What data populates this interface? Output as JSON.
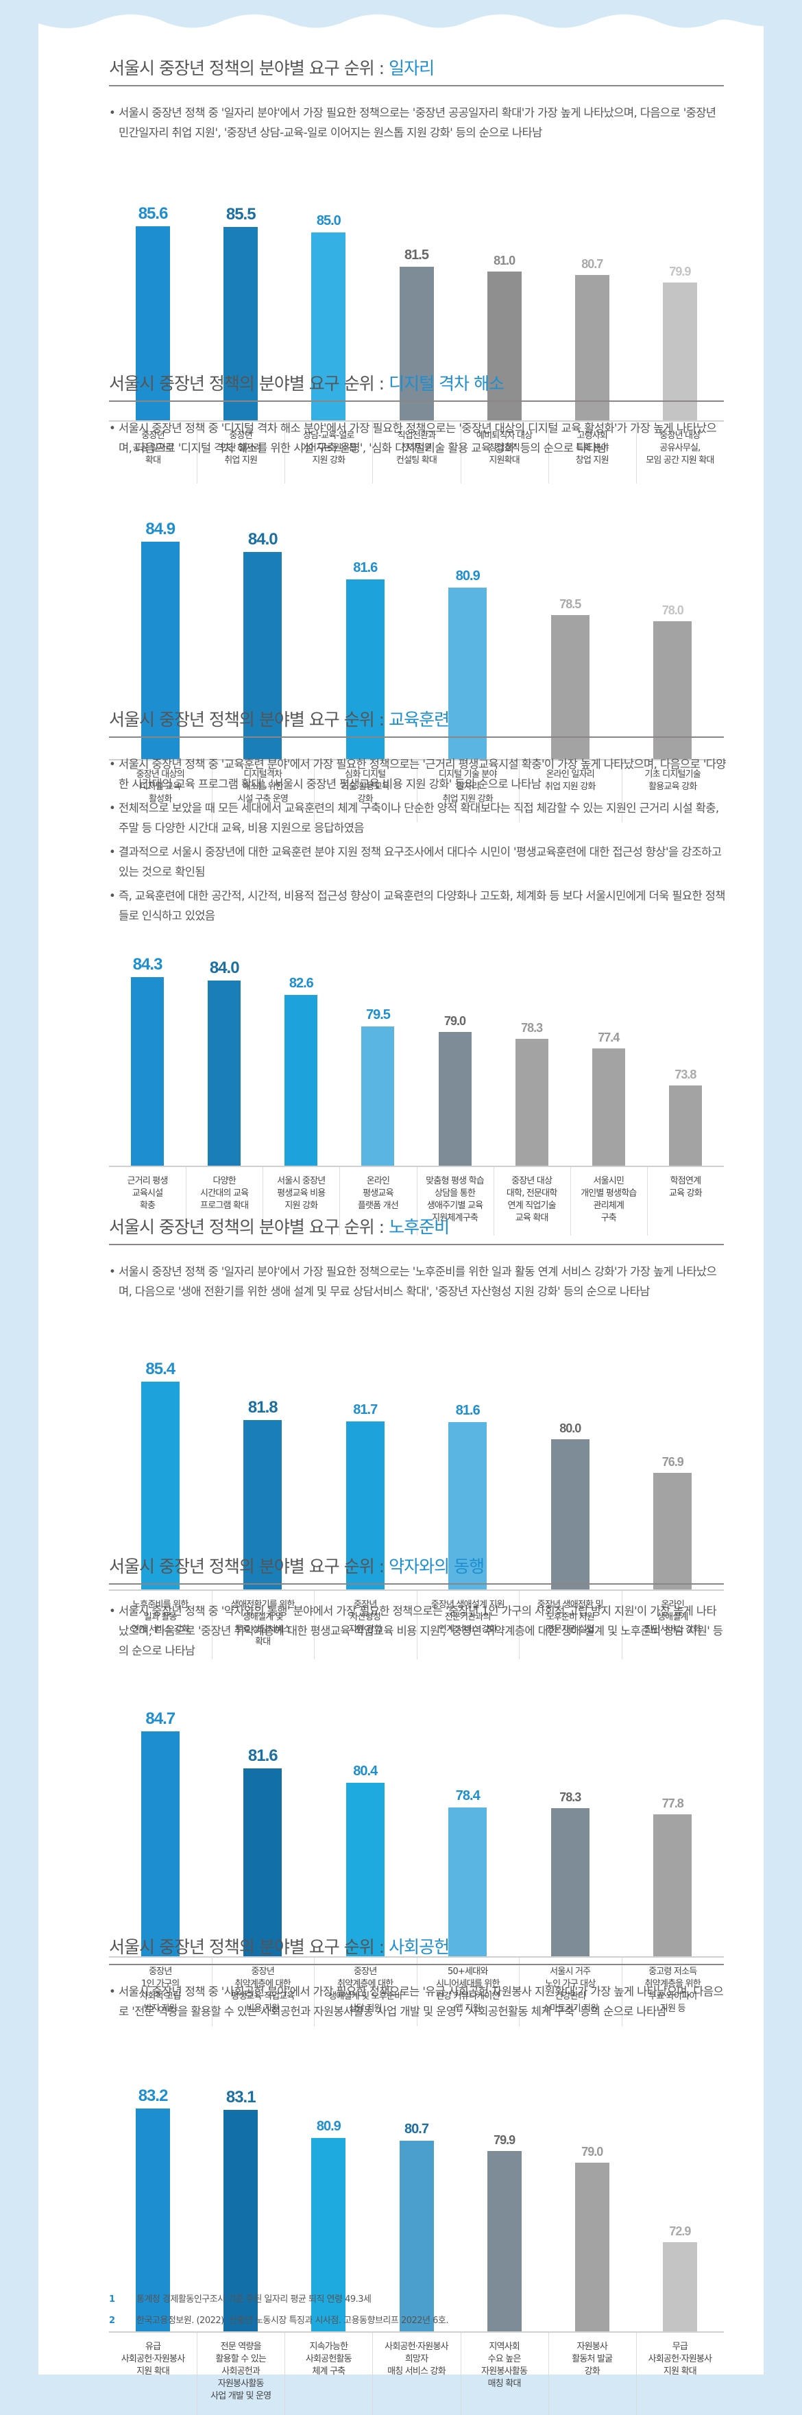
{
  "page": {
    "title_prefix": "서울시 중장년 정책의 분야별 요구 순위 : ",
    "colors": {
      "background": "#d4e8f5",
      "panel": "#ffffff",
      "accent": "#1d8fd1",
      "rule": "#8a8686"
    }
  },
  "sections": [
    {
      "accent_title": "일자리",
      "bullets": [
        "서울시 중장년 정책 중 '일자리 분야'에서 가장 필요한 정책으로는 '중장년 공공일자리 확대'가 가장 높게 나타났으며, 다음으로 '중장년 민간일자리 취업 지원', '중장년 상담-교육-일로 이어지는 원스톱 지원 강화' 등의 순으로 나타남"
      ]
    },
    {
      "accent_title": "디지털 격차 해소",
      "bullets": [
        "서울시 중장년 정책 중 '디지털 격차 해소 분야'에서 가장 필요한 정책으로는 '중장년 대상의 디지털 교육 활성화'가 가장 높게 나타났으며, 다음으로 '디지털 격차 해소를 위한 시설 구축 운영', '심화 디지털기술 활용 교육 강화' 등의 순으로 나타남"
      ]
    },
    {
      "accent_title": "교육훈련",
      "bullets": [
        "서울시 중장년 정책 중 '교육훈련 분야'에서 가장 필요한 정책으로는 '근거리 평생교육시설 확충'이 가장 높게 나타났으며, 다음으로 '다양한 시간대의 교육 프로그램 확대', '서울시 중장년 평생교육 비용 지원 강화' 등의 순으로 나타남",
        "전체적으로 보았을 때 모든 세대에서 교육훈련의 체계 구축이나 단순한 양적 확대보다는 직접 체감할 수 있는 지원인 근거리 시설 확충, 주말 등 다양한 시간대 교육, 비용 지원으로 응답하였음",
        "결과적으로 서울시 중장년에 대한 교육훈련 분야 지원 정책 요구조사에서 대다수 시민이 '평생교육훈련에 대한 접근성 향상'을 강조하고 있는 것으로 확인됨",
        "즉, 교육훈련에 대한 공간적, 시간적, 비용적 접근성 향상이 교육훈련의 다양화나 고도화, 체계화 등 보다 서울시민에게 더욱 필요한 정책들로 인식하고 있었음"
      ]
    },
    {
      "accent_title": "노후준비",
      "bullets": [
        "서울시 중장년 정책 중 '일자리 분야'에서 가장 필요한 정책으로는 '노후준비를 위한 일과 활동 연계 서비스 강화'가 가장 높게 나타났으며, 다음으로 '생애 전환기를 위한 생애 설계 및 무료 상담서비스 확대', '중장년 자산형성 지원 강화' 등의 순으로 나타남"
      ]
    },
    {
      "accent_title": "약자와의 동행",
      "bullets": [
        "서울시 중장년 정책 중 '약자와의 동행' 분야에서 가장 필요한 정책으로는 '중장년 1인 가구의 사회적 고립 방지 지원'이 가장 높게 나타났으며, 다음으로 '중장년 취약계층에 대한 평생교육·직업교육 비용 지원', '중장년 취약계층에 대한 생애 설계 및 노후준비 상담 지원' 등의 순으로 나타남"
      ]
    },
    {
      "accent_title": "사회공헌",
      "bullets": [
        "서울시 중장년 정책 중 '사회공헌 분야'에서 가장 필요한 정책으로는 '유급 사회공헌·자원봉사 지원확대'가 가장 높게 나타났으며, 다음으로 '전문 역량을 활용할 수 있는 사회공헌과 자원봉사활동 사업 개발 및 운영', '사회공헌활동 체계 구축' 등의 순으로 나타남"
      ]
    }
  ],
  "chart_data": [
    {
      "type": "bar",
      "title": "서울시 중장년 정책의 분야별 요구 순위 : 일자리",
      "categories": [
        "중장년\n공공 일자리\n확대",
        "중장년\n민간 일자리\n취업 지원",
        "상담-교육-일로\n이어지는 원스톱\n지원 강화",
        "직업전환과\n전직지원\n컨설팅 확대",
        "예비퇴직자 대상\n창업창직\n지원확대",
        "고령사회\n특화 분야\n창업 지원",
        "중장년 대상\n공유사무실,\n모임 공간 지원 확대"
      ],
      "values": [
        85.6,
        85.5,
        85.0,
        81.5,
        81.0,
        80.7,
        79.9
      ],
      "labels": [
        "85.6",
        "85.5",
        "85.0",
        "81.5",
        "81.0",
        "80.7",
        "79.9"
      ],
      "colors": [
        "#1d8fd1",
        "#1a7fb8",
        "#35b0e4",
        "#7d8c97",
        "#8f8f8f",
        "#a3a3a3",
        "#c4c4c4"
      ],
      "label_colors": [
        "#1d8fd1",
        "#1a6fa3",
        "#1d8fd1",
        "#666666",
        "#888888",
        "#aaaaaa",
        "#c4c4c4"
      ],
      "xlabel": "",
      "ylabel": "",
      "grid": false
    },
    {
      "type": "bar",
      "title": "서울시 중장년 정책의 분야별 요구 순위 : 디지털 격차 해소",
      "categories": [
        "중장년 대상의\n디지털 교육\n활성화",
        "디지털격차\n해소를 위한\n시설 구축 운영",
        "심화 디지털\n기술 활용교육\n강화",
        "디지털 기술 분야\n일자리\n취업 지원 강화",
        "온라인 일자리\n취업 지원 강화",
        "기초 디지털기술\n활용교육 강화"
      ],
      "values": [
        84.9,
        84.0,
        81.6,
        80.9,
        78.5,
        78.0
      ],
      "labels": [
        "84.9",
        "84.0",
        "81.6",
        "80.9",
        "78.5",
        "78.0"
      ],
      "colors": [
        "#1d8fd1",
        "#1a7fb8",
        "#1ea2dc",
        "#5bb5e2",
        "#a3a3a3",
        "#a3a3a3"
      ],
      "label_colors": [
        "#1d8fd1",
        "#1a6fa3",
        "#1d8fd1",
        "#1d8fd1",
        "#aaaaaa",
        "#c4c4c4"
      ],
      "xlabel": "",
      "ylabel": "",
      "grid": false
    },
    {
      "type": "bar",
      "title": "서울시 중장년 정책의 분야별 요구 순위 : 교육훈련",
      "categories": [
        "근거리 평생\n교육시설\n확충",
        "다양한\n시간대의 교육\n프로그램 확대",
        "서울시 중장년\n평생교육 비용\n지원 강화",
        "온라인\n평생교육\n플랫폼 개선",
        "맞춤형 평생 학습\n상담을 통한\n생애주기별 교육\n지원체계구축",
        "중장년 대상\n대학, 전문대학\n연계 직업기술\n교육 확대",
        "서울시민\n개인별 평생학습\n관리체계\n구축",
        "학점연계\n교육 강화"
      ],
      "values": [
        84.3,
        84.0,
        82.6,
        79.5,
        79.0,
        78.3,
        77.4,
        73.8
      ],
      "labels": [
        "84.3",
        "84.0",
        "82.6",
        "79.5",
        "79.0",
        "78.3",
        "77.4",
        "73.8"
      ],
      "colors": [
        "#1d8fd1",
        "#1a7fb8",
        "#1ea2dc",
        "#5bb5e2",
        "#7d8c97",
        "#a3a3a3",
        "#a3a3a3",
        "#a3a3a3"
      ],
      "label_colors": [
        "#1d8fd1",
        "#1a6fa3",
        "#1d8fd1",
        "#1d8fd1",
        "#666666",
        "#999999",
        "#999999",
        "#aaaaaa"
      ],
      "xlabel": "",
      "ylabel": "",
      "grid": false
    },
    {
      "type": "bar",
      "title": "서울시 중장년 정책의 분야별 요구 순위 : 노후준비",
      "categories": [
        "노후준비를 위한\n일과 활동\n연계 서비스 강화",
        "생애전환기를 위한\n생애설계 및\n무료 상담서비스\n확대",
        "중장년\n자산형성\n지원 강화",
        "중장년 생애설계 지원\n전문기관과의\n연계 서비스 강화",
        "중장년 생애전환 및\n노후준비 지원\n전문기관 설립",
        "온라인\n생애설계\n진단서비스 강화"
      ],
      "values": [
        85.4,
        81.8,
        81.7,
        81.6,
        80.0,
        76.9
      ],
      "labels": [
        "85.4",
        "81.8",
        "81.7",
        "81.6",
        "80.0",
        "76.9"
      ],
      "colors": [
        "#1ea2dc",
        "#1a7fb8",
        "#1ea2dc",
        "#5bb5e2",
        "#7d8c97",
        "#a3a3a3"
      ],
      "label_colors": [
        "#1d8fd1",
        "#1a6fa3",
        "#1d8fd1",
        "#1d8fd1",
        "#666666",
        "#999999"
      ],
      "xlabel": "",
      "ylabel": "",
      "grid": false
    },
    {
      "type": "bar",
      "title": "서울시 중장년 정책의 분야별 요구 순위 : 약자와의 동행",
      "categories": [
        "중장년\n1인 가구의\n사회적 고립\n방지 지원",
        "중장년\n취약계층에 대한\n평생교육·직업교육\n비용 지원",
        "중장년\n취약계층에 대한\n생애설계 및 노후준비\n상담 지원",
        "50+세대와\n시니어세대를 위한\n건강 커뮤니케이션\n앱 지원",
        "서울시 거주\n노인 가구 대상\n건강관리\n스마트기기 지원",
        "중고령 저소득\n취약계층을 위한\n무료 와이파이\n지원 등"
      ],
      "values": [
        84.7,
        81.6,
        80.4,
        78.4,
        78.3,
        77.8
      ],
      "labels": [
        "84.7",
        "81.6",
        "80.4",
        "78.4",
        "78.3",
        "77.8"
      ],
      "colors": [
        "#1d8fd1",
        "#126fa8",
        "#1ea9df",
        "#5bb5e2",
        "#7d8c97",
        "#a3a3a3"
      ],
      "label_colors": [
        "#1d8fd1",
        "#1a6fa3",
        "#1d8fd1",
        "#1d8fd1",
        "#666666",
        "#999999"
      ],
      "xlabel": "",
      "ylabel": "",
      "grid": false
    },
    {
      "type": "bar",
      "title": "서울시 중장년 정책의 분야별 요구 순위 : 사회공헌",
      "categories": [
        "유급\n사회공헌·자원봉사\n지원 확대",
        "전문 역량을\n활용할 수 있는\n사회공헌과\n자원봉사활동\n사업 개발 및 운영",
        "지속가능한\n사회공헌활동\n체계 구축",
        "사회공헌·자원봉사\n희망자\n매칭 서비스 강화",
        "지역사회\n수요 높은\n자원봉사활동\n매칭 확대",
        "자원봉사\n활동처 발굴\n강화",
        "무급\n사회공헌·자원봉사\n지원 확대"
      ],
      "values": [
        83.2,
        83.1,
        80.9,
        80.7,
        79.9,
        79.0,
        72.9
      ],
      "labels": [
        "83.2",
        "83.1",
        "80.9",
        "80.7",
        "79.9",
        "79.0",
        "72.9"
      ],
      "colors": [
        "#1d8fd1",
        "#126fa8",
        "#1ea9df",
        "#4a9fcc",
        "#7d8c97",
        "#a3a3a3",
        "#c4c4c4"
      ],
      "label_colors": [
        "#1d8fd1",
        "#1a6fa3",
        "#1d8fd1",
        "#1a6fa3",
        "#666666",
        "#999999",
        "#aaaaaa"
      ],
      "xlabel": "",
      "ylabel": "",
      "grid": false
    }
  ],
  "footnotes": [
    {
      "num": "1",
      "text": "통계청 경제활동인구조사 기준 주된 일자리 평균 퇴직 연령 49.3세"
    },
    {
      "num": "2",
      "text": "한국고용정보원. (2022). 신중년 노동시장 특징과 시사점. 고용동향브리프 2022년 6호."
    }
  ]
}
